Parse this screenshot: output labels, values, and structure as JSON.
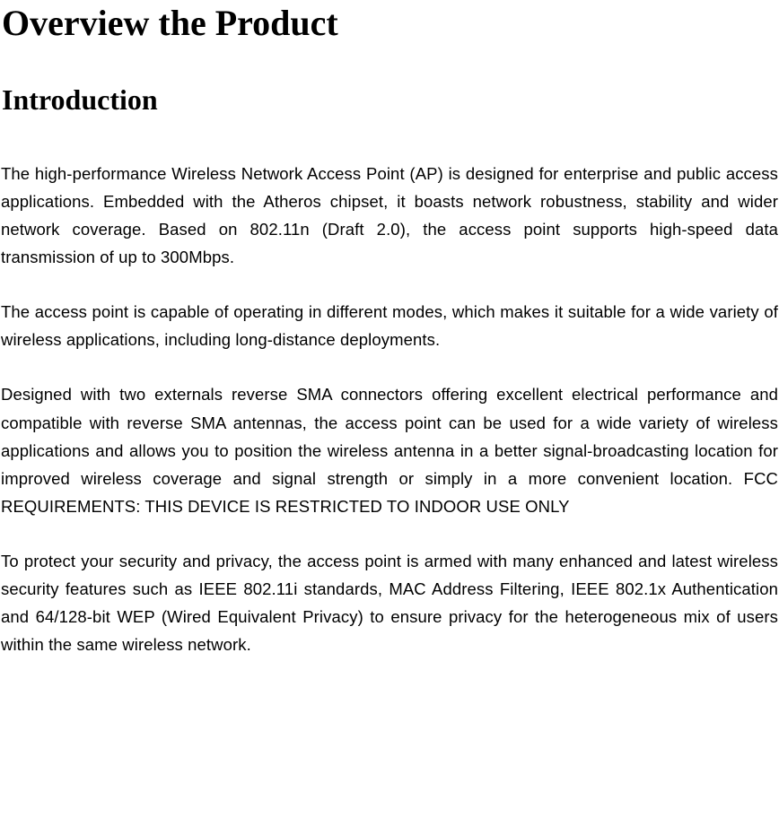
{
  "typography": {
    "heading_font": "Times New Roman, serif",
    "body_font": "Verdana, sans-serif",
    "h1_fontsize": 40,
    "h2_fontsize": 32,
    "body_fontsize": 18.5,
    "text_color": "#000000",
    "background_color": "#ffffff",
    "line_height": 1.68,
    "text_align": "justify"
  },
  "title": "Overview the Product",
  "section_heading": "Introduction",
  "paragraphs": {
    "p1": "The high-performance Wireless Network Access Point (AP) is designed for enterprise and public access applications. Embedded with the Atheros chipset, it boasts network robustness, stability and wider network coverage. Based on 802.11n (Draft 2.0), the access point supports high-speed data transmission of up to 300Mbps.",
    "p2": "The access point is capable of operating in different modes, which makes it suitable for a wide variety of wireless applications, including long-distance deployments.",
    "p3": "Designed with two externals reverse SMA connectors offering excellent electrical performance and compatible with reverse SMA antennas, the access point can be used for a wide variety of wireless applications and allows you to position the wireless antenna in a better signal-broadcasting location for improved wireless coverage and signal strength or simply in a more convenient location. FCC REQUIREMENTS:   THIS DEVICE IS RESTRICTED TO INDOOR USE ONLY",
    "p4": "To protect your security and privacy, the access point is armed with many enhanced and latest wireless security features such as IEEE 802.11i standards, MAC Address Filtering, IEEE 802.1x Authentication and 64/128-bit WEP (Wired Equivalent Privacy) to ensure privacy for the heterogeneous mix of users within the same wireless network."
  }
}
